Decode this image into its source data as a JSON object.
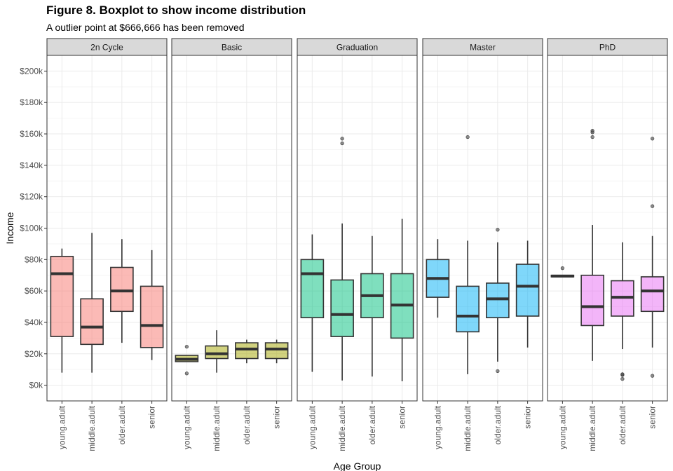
{
  "chart_data": {
    "type": "boxplot",
    "title": "Figure 8. Boxplot to show income distribution",
    "subtitle": "A outlier point at $666,666 has been removed",
    "xlabel": "Age Group",
    "ylabel": "Income",
    "ylim": [
      -10000,
      210000
    ],
    "yticks": [
      0,
      20000,
      40000,
      60000,
      80000,
      100000,
      120000,
      140000,
      160000,
      180000,
      200000
    ],
    "ytick_labels": [
      "$0k",
      "$20k",
      "$40k",
      "$60k",
      "$80k",
      "$100k",
      "$120k",
      "$140k",
      "$160k",
      "$180k",
      "$200k"
    ],
    "categories": [
      "young.adult",
      "middle.adult",
      "older.adult",
      "senior"
    ],
    "grid": true,
    "facets": [
      {
        "name": "2n Cycle",
        "color": "#F8766D",
        "boxes": [
          {
            "category": "young.adult",
            "min": 8000,
            "q1": 31000,
            "median": 71000,
            "q3": 82000,
            "max": 87000,
            "outliers": []
          },
          {
            "category": "middle.adult",
            "min": 8000,
            "q1": 26000,
            "median": 37000,
            "q3": 55000,
            "max": 97000,
            "outliers": []
          },
          {
            "category": "older.adult",
            "min": 27000,
            "q1": 47000,
            "median": 60000,
            "q3": 75000,
            "max": 93000,
            "outliers": []
          },
          {
            "category": "senior",
            "min": 16000,
            "q1": 24000,
            "median": 38000,
            "q3": 63000,
            "max": 86000,
            "outliers": []
          }
        ]
      },
      {
        "name": "Basic",
        "color": "#A3A500",
        "boxes": [
          {
            "category": "young.adult",
            "min": 15000,
            "q1": 15000,
            "median": 16500,
            "q3": 19000,
            "max": 19000,
            "outliers": [
              7500,
              24500
            ]
          },
          {
            "category": "middle.adult",
            "min": 8000,
            "q1": 17000,
            "median": 20000,
            "q3": 25000,
            "max": 35000,
            "outliers": []
          },
          {
            "category": "older.adult",
            "min": 14000,
            "q1": 17000,
            "median": 23000,
            "q3": 27000,
            "max": 29000,
            "outliers": []
          },
          {
            "category": "senior",
            "min": 14000,
            "q1": 17000,
            "median": 23000,
            "q3": 27000,
            "max": 29000,
            "outliers": []
          }
        ]
      },
      {
        "name": "Graduation",
        "color": "#00BF7D",
        "boxes": [
          {
            "category": "young.adult",
            "min": 8500,
            "q1": 43000,
            "median": 71000,
            "q3": 80000,
            "max": 96000,
            "outliers": []
          },
          {
            "category": "middle.adult",
            "min": 3000,
            "q1": 31000,
            "median": 45000,
            "q3": 67000,
            "max": 103000,
            "outliers": [
              154000,
              157000
            ]
          },
          {
            "category": "older.adult",
            "min": 5500,
            "q1": 43000,
            "median": 57000,
            "q3": 71000,
            "max": 95000,
            "outliers": []
          },
          {
            "category": "senior",
            "min": 2500,
            "q1": 30000,
            "median": 51000,
            "q3": 71000,
            "max": 106000,
            "outliers": []
          }
        ]
      },
      {
        "name": "Master",
        "color": "#00B0F6",
        "boxes": [
          {
            "category": "young.adult",
            "min": 43000,
            "q1": 56000,
            "median": 68000,
            "q3": 80000,
            "max": 93000,
            "outliers": []
          },
          {
            "category": "middle.adult",
            "min": 7000,
            "q1": 34000,
            "median": 44000,
            "q3": 63000,
            "max": 92000,
            "outliers": [
              158000
            ]
          },
          {
            "category": "older.adult",
            "min": 15000,
            "q1": 43000,
            "median": 55000,
            "q3": 65000,
            "max": 91000,
            "outliers": [
              9000,
              99000
            ]
          },
          {
            "category": "senior",
            "min": 24000,
            "q1": 44000,
            "median": 63000,
            "q3": 77000,
            "max": 92000,
            "outliers": []
          }
        ]
      },
      {
        "name": "PhD",
        "color": "#E76BF3",
        "boxes": [
          {
            "category": "young.adult",
            "min": 69000,
            "q1": 69000,
            "median": 69500,
            "q3": 70000,
            "max": 70000,
            "outliers": [
              74500
            ]
          },
          {
            "category": "middle.adult",
            "min": 15500,
            "q1": 38000,
            "median": 50000,
            "q3": 70000,
            "max": 102000,
            "outliers": [
              158000,
              161000,
              162000
            ]
          },
          {
            "category": "older.adult",
            "min": 23000,
            "q1": 44000,
            "median": 56000,
            "q3": 66500,
            "max": 91000,
            "outliers": [
              4000,
              6500,
              7000
            ]
          },
          {
            "category": "senior",
            "min": 24000,
            "q1": 47000,
            "median": 60000,
            "q3": 69000,
            "max": 95000,
            "outliers": [
              6000,
              114000,
              157000
            ]
          }
        ]
      }
    ]
  }
}
